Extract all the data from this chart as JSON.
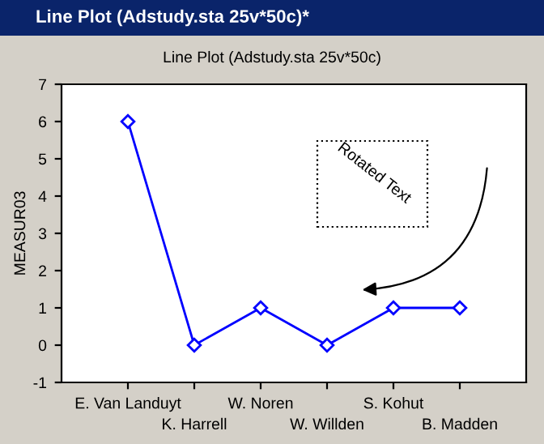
{
  "chart_data": {
    "type": "line",
    "title": "Line Plot (Adstudy.sta 25v*50c)",
    "ylabel": "MEASUR03",
    "categories": [
      "E. Van Landuyt",
      "K. Harrell",
      "W. Noren",
      "W. Willden",
      "S. Kohut",
      "B. Madden"
    ],
    "series": [
      {
        "color": "#0000ff",
        "values": [
          6,
          0,
          1,
          0,
          1,
          1
        ]
      }
    ],
    "ylim": [
      -1,
      7
    ],
    "yticks": [
      -1,
      0,
      1,
      2,
      3,
      4,
      5,
      6,
      7
    ],
    "marker": "diamond",
    "line_style": "solid",
    "grid": false,
    "legend": false,
    "annotations": [
      "Line Plot (Adstudy.sta 25v*50c)*",
      "Rotated Text"
    ]
  }
}
